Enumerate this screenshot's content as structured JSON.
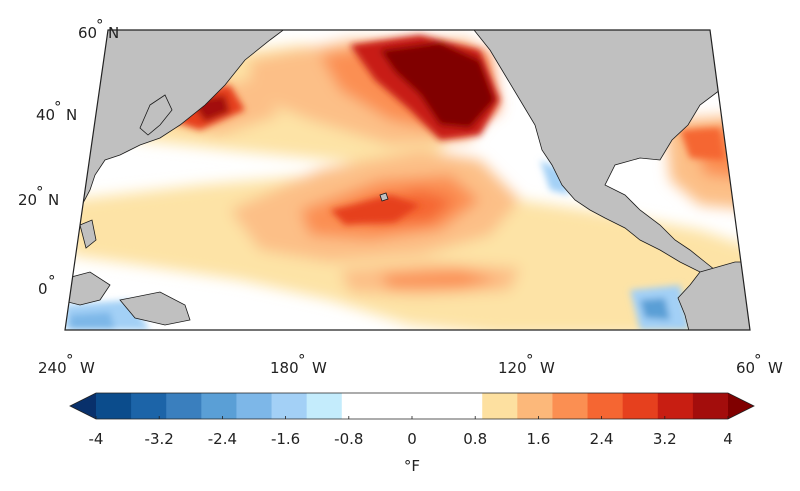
{
  "map": {
    "lat_labels": [
      {
        "deg": "60",
        "hemi": "N"
      },
      {
        "deg": "40",
        "hemi": "N"
      },
      {
        "deg": "20",
        "hemi": "N"
      },
      {
        "deg": "0",
        "hemi": ""
      }
    ],
    "lon_labels": [
      {
        "deg": "240",
        "hemi": "W"
      },
      {
        "deg": "180",
        "hemi": "W"
      },
      {
        "deg": "120",
        "hemi": "W"
      },
      {
        "deg": "60",
        "hemi": "W"
      }
    ],
    "colors": {
      "land": "#c0c0c0",
      "coast": "#1a1a1a",
      "frame": "#222222"
    }
  },
  "colorbar": {
    "unit": "°F",
    "tick_labels": [
      "-4",
      "-3.2",
      "-2.4",
      "-1.6",
      "-0.8",
      "0",
      "0.8",
      "1.6",
      "2.4",
      "3.2",
      "4"
    ],
    "range": [
      -4,
      4
    ],
    "colors": [
      "#08306b",
      "#0b4c8c",
      "#1c64a8",
      "#3a7fbe",
      "#5a9fd6",
      "#7db7e8",
      "#a3d0f6",
      "#c4ecfc",
      "#ffffff",
      "#ffffff",
      "#ffffff",
      "#ffffff",
      "#fde0a0",
      "#fcb87a",
      "#fb8f52",
      "#f56632",
      "#e6401e",
      "#c81e12",
      "#a30d0c",
      "#800000"
    ]
  }
}
